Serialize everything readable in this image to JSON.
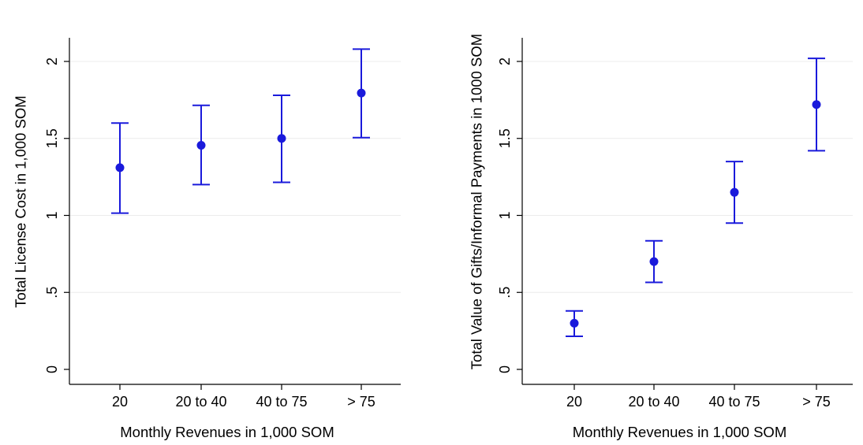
{
  "chart_data": [
    {
      "type": "scatter",
      "categories": [
        "20",
        "20 to 40",
        "40 to 75",
        "> 75"
      ],
      "series": [
        {
          "values": [
            1.31,
            1.455,
            1.5,
            1.795
          ],
          "ci_low": [
            1.015,
            1.2,
            1.215,
            1.505
          ],
          "ci_high": [
            1.6,
            1.715,
            1.78,
            2.08
          ]
        }
      ],
      "title": "",
      "xlabel": "Monthly Revenues in 1,000 SOM",
      "ylabel": "Total License Cost in 1,000 SOM",
      "ylim": [
        0,
        2.15
      ],
      "yticks": [
        0,
        0.5,
        1,
        1.5,
        2
      ],
      "yticklabels": [
        "0",
        ".5",
        "1",
        "1.5",
        "2"
      ],
      "grid": true,
      "marker_color": "#1a1adb"
    },
    {
      "type": "scatter",
      "categories": [
        "20",
        "20 to 40",
        "40 to 75",
        "> 75"
      ],
      "series": [
        {
          "values": [
            0.3,
            0.7,
            1.15,
            1.72
          ],
          "ci_low": [
            0.215,
            0.565,
            0.95,
            1.42
          ],
          "ci_high": [
            0.38,
            0.835,
            1.35,
            2.02
          ]
        }
      ],
      "title": "",
      "xlabel": "Monthly Revenues in 1,000 SOM",
      "ylabel": "Total Value of Gifts/Informal Payments in 1000 SOM",
      "ylim": [
        0,
        2.15
      ],
      "yticks": [
        0,
        0.5,
        1,
        1.5,
        2
      ],
      "yticklabels": [
        "0",
        ".5",
        "1",
        "1.5",
        "2"
      ],
      "grid": true,
      "marker_color": "#1a1adb"
    }
  ]
}
